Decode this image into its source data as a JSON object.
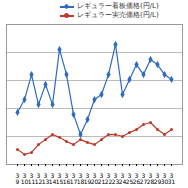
{
  "chart_data": {
    "type": "line",
    "categories": [
      "3\n9",
      "3\n10",
      "3\n11",
      "3\n12",
      "3\n13",
      "3\n14",
      "3\n15",
      "3\n16",
      "3\n17",
      "3\n18",
      "3\n19",
      "3\n20",
      "3\n21",
      "3\n22",
      "3\n23",
      "3\n24",
      "3\n25",
      "3\n26",
      "3\n27",
      "3\n28",
      "3\n29",
      "3\n30",
      "3\n31"
    ],
    "series": [
      {
        "name": "レギュラー看板価格(円/L)",
        "color": "#2e6bbf",
        "marker": "diamond",
        "values": [
          148.6,
          153.2,
          162.1,
          151.4,
          158.6,
          151.4,
          171.1,
          162.1,
          147.9,
          140.7,
          146.1,
          153.2,
          155,
          162.1,
          172.9,
          155,
          160.4,
          165.7,
          162.1,
          167.5,
          165.7,
          162.1,
          160.4
        ]
      },
      {
        "name": "レギュラー実売価格(円/L)",
        "color": "#c0392b",
        "marker": "circle",
        "values": [
          135.4,
          133.6,
          134.3,
          137.1,
          138.9,
          140.7,
          139.7,
          138.2,
          137.1,
          138.9,
          137.9,
          137.1,
          138.9,
          140.7,
          140.7,
          140,
          141.4,
          142.5,
          144.3,
          145,
          142.5,
          140.7,
          142.5
        ]
      }
    ],
    "ylim": [
      130,
      180
    ],
    "yticks": [
      130,
      140,
      150,
      160,
      170,
      180
    ],
    "grid": true,
    "tick_labels": "x",
    "legend": "top-right"
  }
}
